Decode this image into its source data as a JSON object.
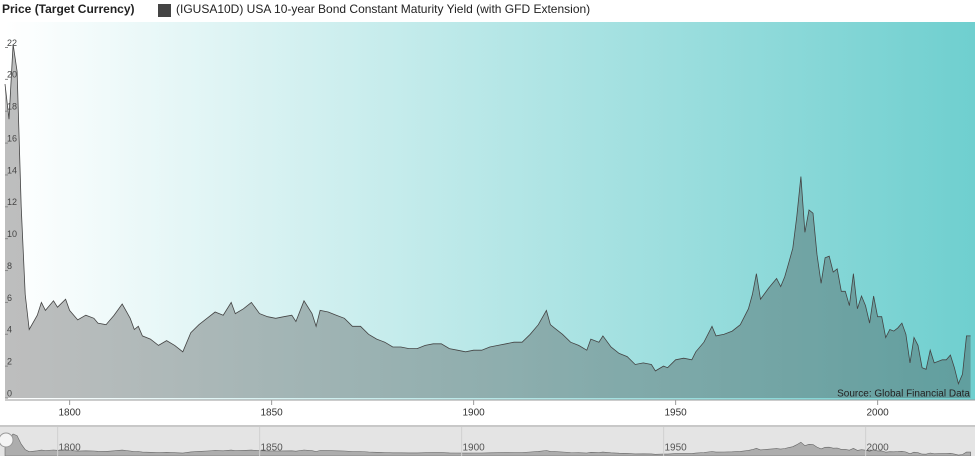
{
  "chart_data": {
    "type": "area",
    "legend_title": "Price (Target Currency)",
    "annotation": "Source: Global Financial Data",
    "x": [
      1784,
      1785,
      1786,
      1787,
      1788,
      1789,
      1790,
      1792,
      1793,
      1794,
      1796,
      1797,
      1799,
      1800,
      1802,
      1804,
      1806,
      1807,
      1809,
      1811,
      1813,
      1815,
      1816,
      1817,
      1818,
      1820,
      1822,
      1824,
      1826,
      1828,
      1830,
      1832,
      1834,
      1836,
      1838,
      1840,
      1841,
      1843,
      1845,
      1847,
      1849,
      1851,
      1853,
      1855,
      1856,
      1858,
      1860,
      1861,
      1862,
      1864,
      1866,
      1868,
      1870,
      1872,
      1874,
      1876,
      1878,
      1880,
      1882,
      1884,
      1886,
      1888,
      1890,
      1892,
      1894,
      1896,
      1898,
      1900,
      1902,
      1904,
      1906,
      1908,
      1910,
      1912,
      1914,
      1916,
      1918,
      1919,
      1920,
      1922,
      1924,
      1926,
      1928,
      1929,
      1931,
      1932,
      1934,
      1936,
      1938,
      1940,
      1942,
      1944,
      1945,
      1947,
      1948,
      1950,
      1952,
      1954,
      1955,
      1957,
      1959,
      1960,
      1962,
      1964,
      1966,
      1968,
      1969,
      1970,
      1971,
      1973,
      1975,
      1976,
      1977,
      1978,
      1979,
      1980,
      1981,
      1982,
      1983,
      1984,
      1985,
      1986,
      1987,
      1988,
      1989,
      1990,
      1991,
      1992,
      1993,
      1994,
      1995,
      1996,
      1997,
      1998,
      1999,
      2000,
      2001,
      2002,
      2003,
      2004,
      2005,
      2006,
      2007,
      2008,
      2009,
      2010,
      2011,
      2012,
      2013,
      2014,
      2015,
      2016,
      2017,
      2018,
      2019,
      2020,
      2021,
      2022,
      2023
    ],
    "series": [
      {
        "name": "(IGUSA10D) USA 10-year Bond Constant Maturity Yield (with GFD Extension)",
        "color": "#444444",
        "values": [
          19.7,
          17.5,
          22.2,
          20.5,
          12,
          6.5,
          4.3,
          5.2,
          6,
          5.5,
          6.1,
          5.7,
          6.2,
          5.5,
          4.9,
          5.2,
          5.0,
          4.7,
          4.6,
          5.2,
          5.9,
          5.0,
          4.3,
          4.5,
          3.9,
          3.7,
          3.3,
          3.6,
          3.3,
          2.9,
          4.1,
          4.6,
          5.0,
          5.4,
          5.2,
          6.0,
          5.3,
          5.6,
          6.0,
          5.3,
          5.1,
          5.0,
          5.1,
          5.2,
          4.8,
          6.1,
          5.3,
          4.5,
          5.5,
          5.4,
          5.2,
          5.0,
          4.5,
          4.5,
          4.0,
          3.7,
          3.5,
          3.2,
          3.2,
          3.1,
          3.1,
          3.3,
          3.4,
          3.4,
          3.1,
          3.0,
          2.9,
          3.0,
          3.0,
          3.2,
          3.3,
          3.4,
          3.5,
          3.5,
          4.0,
          4.6,
          5.5,
          4.6,
          4.4,
          4.0,
          3.5,
          3.3,
          3.0,
          3.7,
          3.5,
          3.9,
          3.2,
          2.8,
          2.6,
          2.1,
          2.2,
          2.1,
          1.7,
          2.0,
          1.9,
          2.4,
          2.5,
          2.4,
          2.9,
          3.5,
          4.5,
          3.9,
          4.0,
          4.2,
          4.6,
          5.6,
          6.5,
          7.8,
          6.2,
          6.9,
          7.5,
          7.0,
          7.6,
          8.5,
          9.4,
          11.4,
          13.9,
          10.4,
          11.8,
          11.6,
          9.0,
          7.2,
          8.8,
          8.9,
          7.9,
          8.1,
          6.7,
          6.7,
          5.8,
          7.8,
          5.6,
          6.4,
          5.8,
          4.7,
          6.4,
          5.1,
          5.1,
          3.8,
          4.3,
          4.2,
          4.4,
          4.7,
          4.0,
          2.2,
          3.8,
          3.3,
          1.9,
          1.8,
          3.0,
          2.2,
          2.3,
          2.4,
          2.4,
          2.7,
          1.9,
          0.9,
          1.5,
          3.9,
          3.9
        ]
      }
    ],
    "xlim": [
      1784,
      2024.1
    ],
    "ylim": [
      0,
      23.6
    ],
    "xticks": [
      1800,
      1850,
      1900,
      1950,
      2000
    ],
    "yticks": [
      0,
      2,
      4,
      6,
      8,
      10,
      12,
      14,
      16,
      18,
      20,
      22
    ],
    "grid": false
  }
}
